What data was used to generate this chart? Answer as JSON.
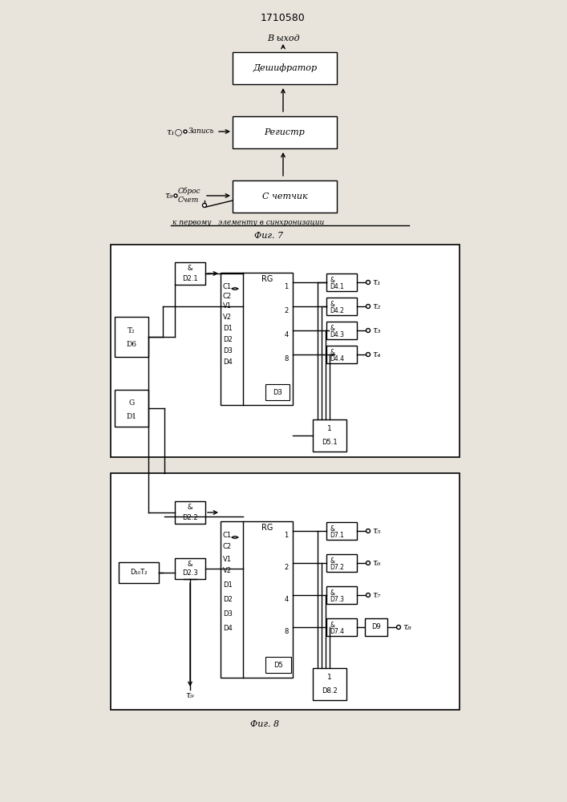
{
  "title": "1710580",
  "fig7_label": "Фиг. 7",
  "fig8_label": "Фиг. 8",
  "bg_color": "#e8e4dc",
  "fig7": {
    "vyhod_label": "B ыход",
    "deshifrator_label": "Дешифратор",
    "registr_label": "Регистр",
    "schetchik_label": "С четчик",
    "zapis_label": "Запись",
    "sbros_label": "Сброс",
    "schet_label": "Счет",
    "note_label": "к первому   элементу в синхронизации"
  },
  "fig8": {
    "tau_labels": [
      "τ₁",
      "τ₂",
      "τ₃",
      "τ₄",
      "τ₅",
      "τ₆",
      "τ₇",
      "τ₈"
    ],
    "tau9_label": "τ₉"
  }
}
